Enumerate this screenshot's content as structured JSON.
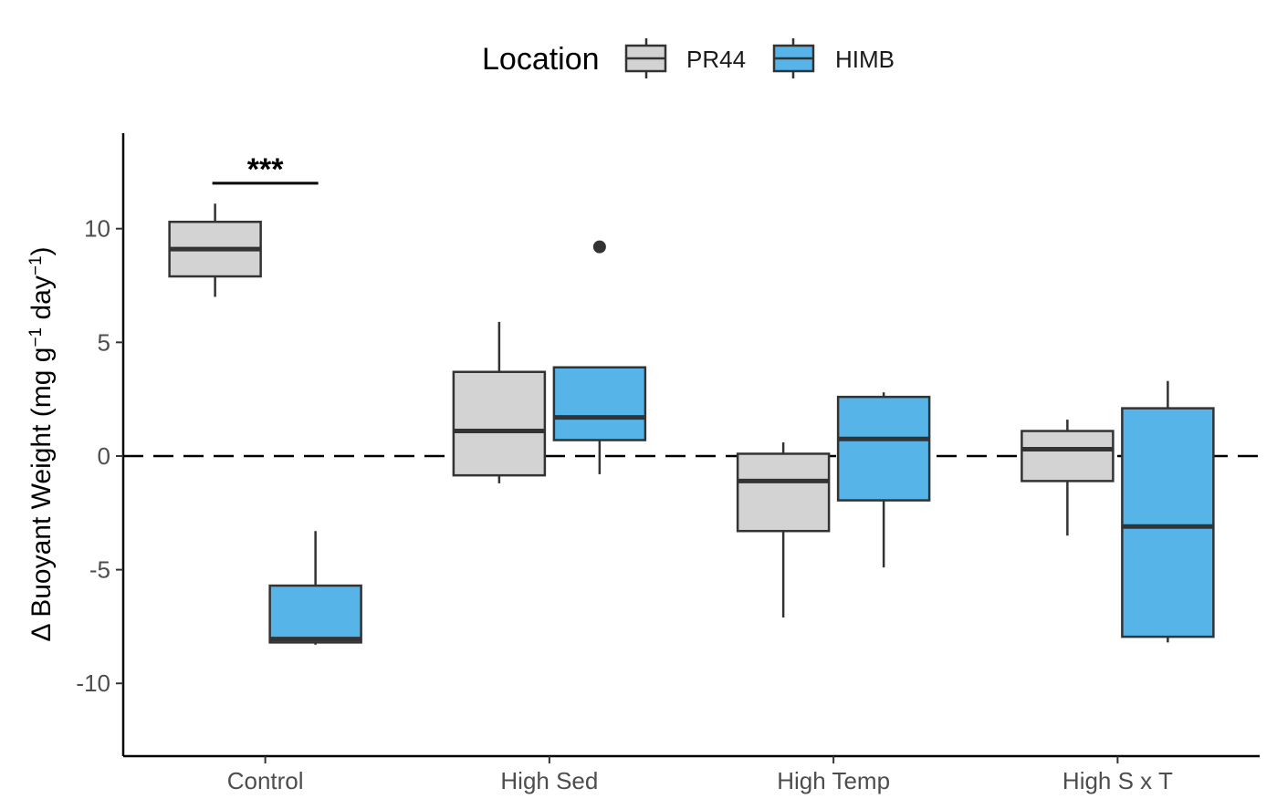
{
  "chart_data": {
    "type": "boxplot",
    "ylabel_prefix": "Δ Buoyant Weight (mg g",
    "ylabel_sup1": "−1",
    "ylabel_mid": " day",
    "ylabel_sup2": "−1",
    "ylabel_suffix": ")",
    "ylim": [
      -13.2,
      14.2
    ],
    "yticks": [
      -10,
      -5,
      0,
      5,
      10
    ],
    "ytick_labels": [
      "-10",
      "-5",
      "0",
      "5",
      "10"
    ],
    "reference_line": 0,
    "categories": [
      "Control",
      "High Sed",
      "High Temp",
      "High S x T"
    ],
    "legend": {
      "title": "Location",
      "position": "top",
      "entries": [
        "PR44",
        "HIMB"
      ]
    },
    "colors": {
      "PR44": "#d3d3d3",
      "HIMB": "#56b4e9",
      "line": "#333333"
    },
    "series": [
      {
        "name": "PR44",
        "boxes": [
          {
            "min": 7.0,
            "q1": 7.9,
            "median": 9.1,
            "q3": 10.3,
            "max": 11.1,
            "outliers": []
          },
          {
            "min": -1.2,
            "q1": -0.85,
            "median": 1.1,
            "q3": 3.7,
            "max": 5.9,
            "outliers": []
          },
          {
            "min": -7.1,
            "q1": -3.3,
            "median": -1.1,
            "q3": 0.1,
            "max": 0.6,
            "outliers": []
          },
          {
            "min": -3.5,
            "q1": -1.1,
            "median": 0.3,
            "q3": 1.1,
            "max": 1.6,
            "outliers": []
          }
        ]
      },
      {
        "name": "HIMB",
        "boxes": [
          {
            "min": -8.3,
            "q1": -8.2,
            "median": -8.05,
            "q3": -5.7,
            "max": -3.3,
            "outliers": []
          },
          {
            "min": -0.8,
            "q1": 0.7,
            "median": 1.7,
            "q3": 3.9,
            "max": 3.9,
            "outliers": [
              9.2
            ]
          },
          {
            "min": -4.9,
            "q1": -1.95,
            "median": 0.75,
            "q3": 2.6,
            "max": 2.8,
            "outliers": []
          },
          {
            "min": -8.2,
            "q1": -7.95,
            "median": -3.1,
            "q3": 2.1,
            "max": 3.3,
            "outliers": []
          }
        ]
      }
    ],
    "annotations": [
      {
        "category": "Control",
        "text": "***",
        "y": 12.0
      }
    ]
  }
}
